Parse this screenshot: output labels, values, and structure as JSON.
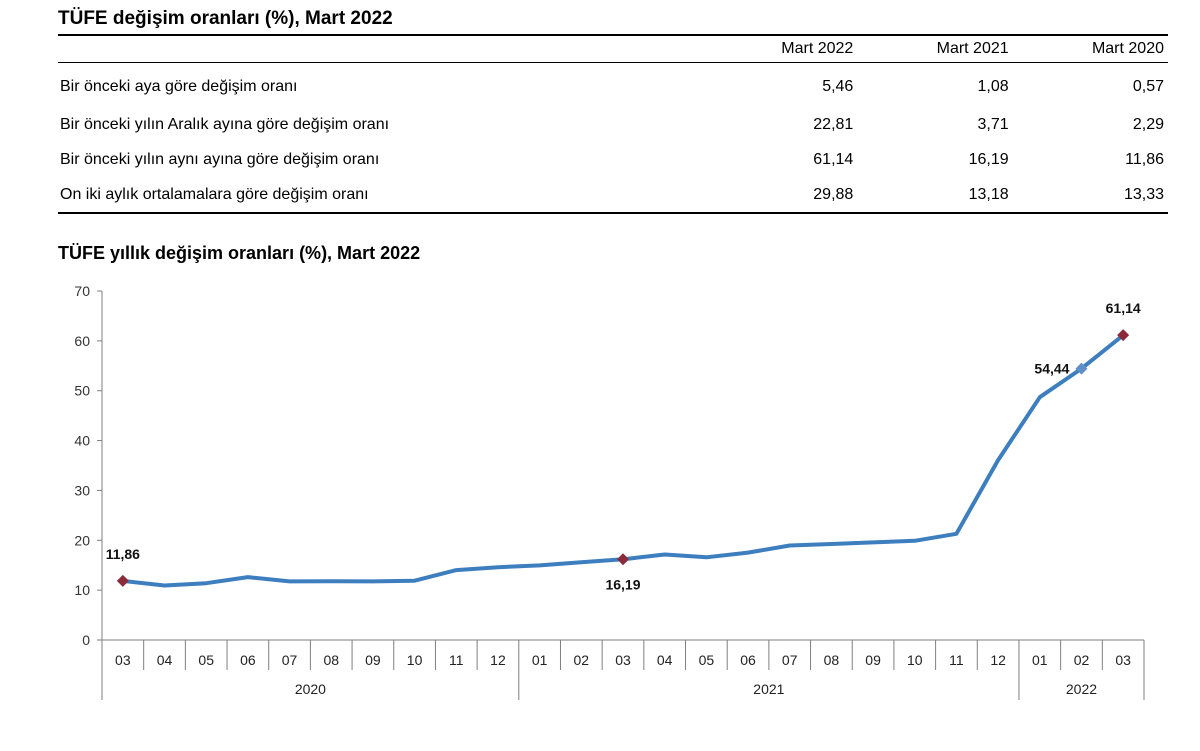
{
  "table": {
    "title": "TÜFE değişim oranları (%), Mart 2022",
    "columns": [
      "Mart 2022",
      "Mart 2021",
      "Mart 2020"
    ],
    "rows": [
      {
        "label": "Bir önceki aya göre değişim oranı",
        "values": [
          "5,46",
          "1,08",
          "0,57"
        ]
      },
      {
        "label": "Bir önceki yılın Aralık ayına göre değişim oranı",
        "values": [
          "22,81",
          "3,71",
          "2,29"
        ]
      },
      {
        "label": "Bir önceki yılın aynı ayına göre değişim oranı",
        "values": [
          "61,14",
          "16,19",
          "11,86"
        ]
      },
      {
        "label": "On iki aylık ortalamalara göre değişim oranı",
        "values": [
          "29,88",
          "13,18",
          "13,33"
        ]
      }
    ]
  },
  "chart_data": {
    "type": "line",
    "title": "TÜFE yıllık değişim oranları (%), Mart 2022",
    "xlabel": "",
    "ylabel": "",
    "ylim": [
      0,
      70
    ],
    "yticks": [
      "0",
      "10",
      "20",
      "30",
      "40",
      "50",
      "60",
      "70"
    ],
    "grid": false,
    "months": [
      "03",
      "04",
      "05",
      "06",
      "07",
      "08",
      "09",
      "10",
      "11",
      "12",
      "01",
      "02",
      "03",
      "04",
      "05",
      "06",
      "07",
      "08",
      "09",
      "10",
      "11",
      "12",
      "01",
      "02",
      "03"
    ],
    "years": [
      {
        "label": "2020",
        "count": 10
      },
      {
        "label": "2021",
        "count": 12
      },
      {
        "label": "2022",
        "count": 3
      }
    ],
    "series": [
      {
        "color": "#3d7ebf",
        "values": [
          11.86,
          10.94,
          11.39,
          12.62,
          11.76,
          11.77,
          11.75,
          11.89,
          14.03,
          14.6,
          14.97,
          15.61,
          16.19,
          17.14,
          16.59,
          17.53,
          18.95,
          19.25,
          19.58,
          19.89,
          21.31,
          36.08,
          48.69,
          54.44,
          61.14
        ]
      }
    ],
    "annotations": [
      {
        "index": 0,
        "text": "11,86",
        "marker": "diamond",
        "color": "#8b2b3a",
        "place": "above"
      },
      {
        "index": 12,
        "text": "16,19",
        "marker": "diamond",
        "color": "#8b2b3a",
        "place": "below"
      },
      {
        "index": 23,
        "text": "54,44",
        "marker": "diamond",
        "color": "#5f8fc7",
        "place": "left"
      },
      {
        "index": 24,
        "text": "61,14",
        "marker": "diamond",
        "color": "#8b2b3a",
        "place": "above"
      }
    ]
  }
}
